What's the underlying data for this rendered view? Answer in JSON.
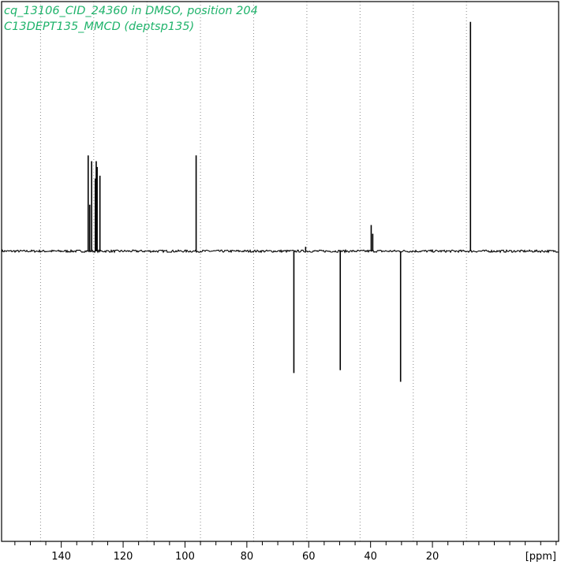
{
  "header": {
    "line1": "cq_13106_CID_24360 in DMSO, position 204",
    "line2": "C13DEPT135_MMCD (deptsp135)"
  },
  "colors": {
    "title": "#1fb36b",
    "trace": "#000000",
    "grid": "#8a8a8a",
    "frame": "#000000"
  },
  "chart_data": {
    "type": "line",
    "title": "cq_13106_CID_24360 in DMSO, position 204",
    "subtitle": "C13DEPT135_MMCD (deptsp135)",
    "xlabel": "[ppm]",
    "ylabel": "",
    "x_reversed": true,
    "xlim": [
      159.3,
      -20.8
    ],
    "ylim": [
      -1.0,
      0.86
    ],
    "x_major_ticks": [
      140,
      120,
      100,
      80,
      60,
      40,
      20
    ],
    "x_tick_labels": [
      "140",
      "120",
      "100",
      "80",
      "60",
      "40",
      "20"
    ],
    "x_minor_tick_step": 5,
    "vertical_gridlines": [
      146.7,
      129.5,
      112.3,
      95.0,
      77.8,
      60.6,
      43.4,
      26.2,
      9.0
    ],
    "grid": true,
    "noise_level": 0.004,
    "series": [
      {
        "values_note": "",
        "peaks": [
          {
            "x": 131.3,
            "y": 0.33
          },
          {
            "x": 130.8,
            "y": 0.16
          },
          {
            "x": 130.2,
            "y": 0.31
          },
          {
            "x": 129.0,
            "y": 0.25
          },
          {
            "x": 128.7,
            "y": 0.31
          },
          {
            "x": 128.4,
            "y": 0.29
          },
          {
            "x": 127.5,
            "y": 0.26
          },
          {
            "x": 96.4,
            "y": 0.33
          },
          {
            "x": 64.8,
            "y": -0.42
          },
          {
            "x": 61.0,
            "y": 0.015
          },
          {
            "x": 49.8,
            "y": -0.41
          },
          {
            "x": 39.8,
            "y": 0.09
          },
          {
            "x": 39.3,
            "y": 0.06
          },
          {
            "x": 30.3,
            "y": -0.45
          },
          {
            "x": 7.7,
            "y": 0.79
          }
        ]
      }
    ]
  }
}
